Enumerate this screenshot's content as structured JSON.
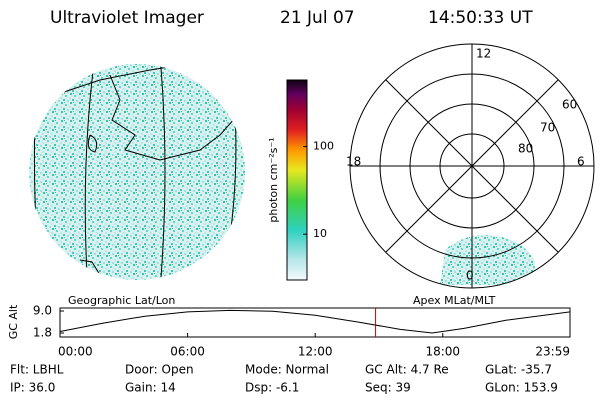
{
  "header": {
    "title": "Ultraviolet Imager",
    "date": "21 Jul 07",
    "time": "14:50:33 UT"
  },
  "colorbar": {
    "label": "photon cm⁻²s⁻¹",
    "log": true,
    "lim": [
      3,
      575
    ],
    "ticks": [
      10,
      100
    ]
  },
  "polar": {
    "mlt_labels": [
      "12",
      "18",
      "6",
      "0"
    ],
    "lat_labels": [
      "60",
      "70",
      "80"
    ]
  },
  "panel_labels": {
    "left": "Geographic Lat/Lon",
    "right": "Apex MLat/MLT"
  },
  "chart_data": {
    "type": "line",
    "ylabel": "GC Alt",
    "x": [
      0,
      2,
      4,
      6,
      8,
      10,
      12,
      14,
      16,
      17.5,
      19,
      21,
      23.983
    ],
    "values": [
      2.3,
      5.0,
      7.3,
      8.7,
      9.2,
      8.9,
      7.6,
      5.4,
      3.0,
      1.8,
      3.3,
      6.0,
      8.7
    ],
    "color": "#000000",
    "xlim": [
      0,
      23.983
    ],
    "xticks": [
      {
        "value": 0,
        "label": "00:00"
      },
      {
        "value": 6,
        "label": "06:00"
      },
      {
        "value": 12,
        "label": "12:00"
      },
      {
        "value": 18,
        "label": "18:00"
      },
      {
        "value": 23.983,
        "label": "23:59"
      }
    ],
    "ylim": [
      1.8,
      9.0
    ],
    "yticks": [
      {
        "value": 9,
        "label": "9.0"
      },
      1.8
    ],
    "marker": 14.84,
    "marker_color": "#cc0000"
  },
  "status": [
    [
      "Flt: LBHL",
      "IP: 36.0"
    ],
    [
      "Door: Open",
      "Gain: 14"
    ],
    [
      "Mode: Normal",
      "Dsp:  -6.1"
    ],
    [
      "GC Alt: 4.7 Re",
      "Seq: 39"
    ],
    [
      "GLat: -35.7",
      "GLon: 153.9"
    ]
  ]
}
